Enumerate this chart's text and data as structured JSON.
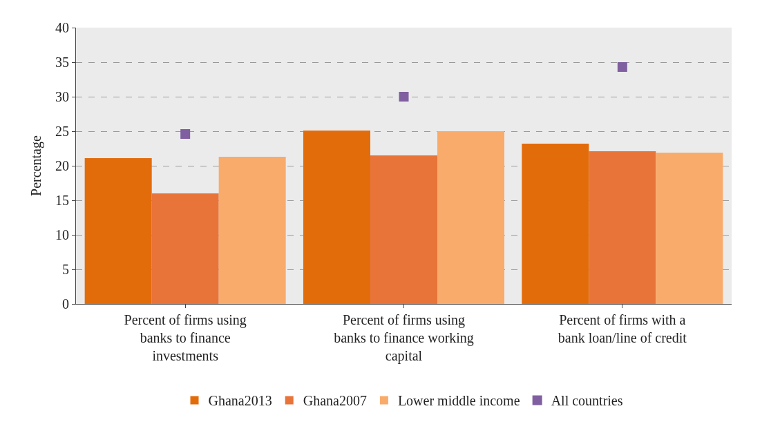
{
  "chart_data": {
    "type": "bar",
    "ylabel": "Percentage",
    "categories": [
      "Percent of firms using banks to finance investments",
      "Percent of firms using banks to finance working capital",
      "Percent of firms with a bank loan/line of credit"
    ],
    "series": [
      {
        "name": "Ghana2013",
        "color": "#e36c0a",
        "values": [
          21.1,
          25.1,
          23.2
        ]
      },
      {
        "name": "Ghana2007",
        "color": "#e8743a",
        "values": [
          16.0,
          21.5,
          22.1
        ]
      },
      {
        "name": "Lower middle income",
        "color": "#f9ab6b",
        "values": [
          21.3,
          25.0,
          21.9
        ]
      },
      {
        "name": "All countries",
        "type": "scatter",
        "color": "#7f5fa0",
        "values": [
          24.6,
          30.0,
          34.3
        ]
      }
    ],
    "ylim": [
      0,
      40
    ],
    "yticks": [
      0,
      5,
      10,
      15,
      20,
      25,
      30,
      35,
      40
    ],
    "grid": "y",
    "legend": "bottom",
    "marker": "square"
  }
}
